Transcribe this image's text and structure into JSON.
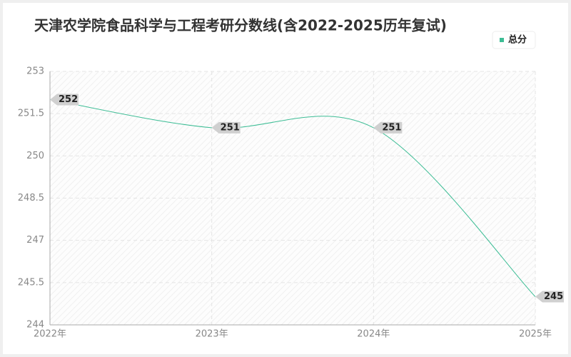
{
  "chart_data": {
    "type": "line",
    "title": "天津农学院食品科学与工程考研分数线(含2022-2025历年复试)",
    "categories": [
      "2022年",
      "2023年",
      "2024年",
      "2025年"
    ],
    "series": [
      {
        "name": "总分",
        "color": "#3dbd95",
        "values": [
          252,
          251,
          251,
          245
        ]
      }
    ],
    "ylim": [
      244,
      253
    ],
    "yticks": [
      244,
      245.5,
      247,
      248.5,
      250,
      251.5,
      253
    ],
    "grid": true,
    "legend": "top-right"
  }
}
